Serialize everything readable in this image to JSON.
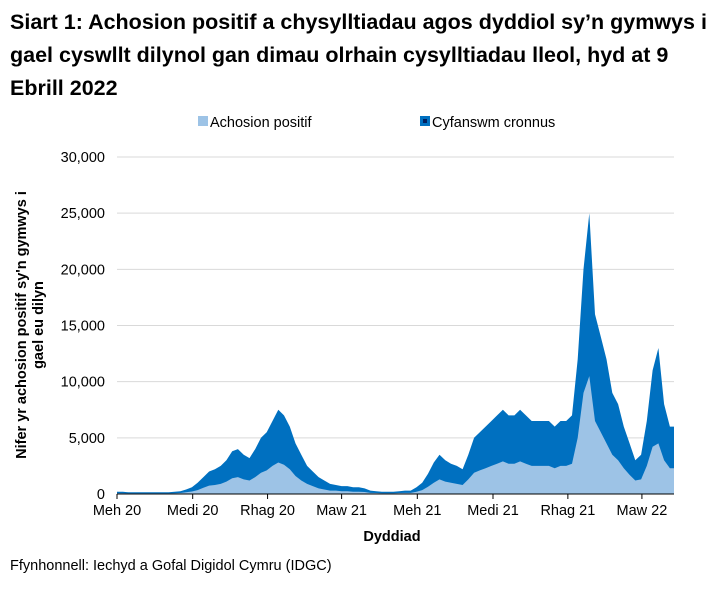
{
  "chart_data": {
    "type": "area",
    "title": "Siart 1: Achosion positif a chysylltiadau agos dyddiol sy’n gymwys i gael cyswllt dilynol gan dimau olrhain cysylltiadau lleol, hyd at 9 Ebrill 2022",
    "xlabel": "Dyddiad",
    "ylabel": "Nifer yr achosion positif sy'n gymwys i gael eu dilyn",
    "ylim": [
      0,
      30000
    ],
    "xlim": [
      "2020-06-01",
      "2022-04-09"
    ],
    "yticks": [
      0,
      5000,
      10000,
      15000,
      20000,
      25000,
      30000
    ],
    "ytick_labels": [
      "0",
      "5,000",
      "10,000",
      "15,000",
      "20,000",
      "25,000",
      "30,000"
    ],
    "xticks": [
      {
        "date": "2020-06-01",
        "label": "Meh 20"
      },
      {
        "date": "2020-09-01",
        "label": "Medi 20"
      },
      {
        "date": "2020-12-01",
        "label": "Rhag 20"
      },
      {
        "date": "2021-03-01",
        "label": "Maw 21"
      },
      {
        "date": "2021-06-01",
        "label": "Meh 21"
      },
      {
        "date": "2021-09-01",
        "label": "Medi 21"
      },
      {
        "date": "2021-12-01",
        "label": "Rhag 21"
      },
      {
        "date": "2022-03-01",
        "label": "Maw 22"
      }
    ],
    "grid": true,
    "legend": "top",
    "x": [
      "2020-06-01",
      "2020-06-08",
      "2020-06-15",
      "2020-06-22",
      "2020-06-29",
      "2020-07-06",
      "2020-07-13",
      "2020-07-20",
      "2020-07-27",
      "2020-08-03",
      "2020-08-10",
      "2020-08-17",
      "2020-08-24",
      "2020-08-31",
      "2020-09-07",
      "2020-09-14",
      "2020-09-21",
      "2020-09-28",
      "2020-10-05",
      "2020-10-12",
      "2020-10-19",
      "2020-10-26",
      "2020-11-02",
      "2020-11-09",
      "2020-11-16",
      "2020-11-23",
      "2020-11-30",
      "2020-12-07",
      "2020-12-14",
      "2020-12-21",
      "2020-12-28",
      "2021-01-04",
      "2021-01-11",
      "2021-01-18",
      "2021-01-25",
      "2021-02-01",
      "2021-02-08",
      "2021-02-15",
      "2021-02-22",
      "2021-03-01",
      "2021-03-08",
      "2021-03-15",
      "2021-03-22",
      "2021-03-29",
      "2021-04-05",
      "2021-04-12",
      "2021-04-19",
      "2021-04-26",
      "2021-05-03",
      "2021-05-10",
      "2021-05-17",
      "2021-05-24",
      "2021-05-31",
      "2021-06-07",
      "2021-06-14",
      "2021-06-21",
      "2021-06-28",
      "2021-07-05",
      "2021-07-12",
      "2021-07-19",
      "2021-07-26",
      "2021-08-02",
      "2021-08-09",
      "2021-08-16",
      "2021-08-23",
      "2021-08-30",
      "2021-09-06",
      "2021-09-13",
      "2021-09-20",
      "2021-09-27",
      "2021-10-04",
      "2021-10-11",
      "2021-10-18",
      "2021-10-25",
      "2021-11-01",
      "2021-11-08",
      "2021-11-15",
      "2021-11-22",
      "2021-11-29",
      "2021-12-06",
      "2021-12-13",
      "2021-12-20",
      "2021-12-27",
      "2022-01-03",
      "2022-01-10",
      "2022-01-17",
      "2022-01-24",
      "2022-01-31",
      "2022-02-07",
      "2022-02-14",
      "2022-02-21",
      "2022-02-28",
      "2022-03-07",
      "2022-03-14",
      "2022-03-21",
      "2022-03-28",
      "2022-04-04"
    ],
    "series": [
      {
        "name": "Cyfanswm cronnus",
        "color": "#0070c0",
        "values": [
          200,
          200,
          150,
          150,
          150,
          150,
          150,
          150,
          150,
          150,
          200,
          250,
          400,
          600,
          1000,
          1500,
          2000,
          2200,
          2500,
          3000,
          3800,
          4000,
          3500,
          3200,
          4000,
          5000,
          5500,
          6500,
          7500,
          7000,
          6000,
          4500,
          3500,
          2500,
          2000,
          1500,
          1200,
          900,
          800,
          700,
          700,
          600,
          600,
          500,
          300,
          250,
          200,
          200,
          200,
          250,
          300,
          300,
          600,
          1000,
          1800,
          2800,
          3500,
          3000,
          2700,
          2500,
          2200,
          3500,
          5000,
          5500,
          6000,
          6500,
          7000,
          7500,
          7000,
          7000,
          7500,
          7000,
          6500,
          6500,
          6500,
          6500,
          6000,
          6500,
          6500,
          7000,
          12000,
          20000,
          25000,
          16000,
          14000,
          12000,
          9000,
          8000,
          6000,
          4500,
          3000,
          3500,
          6500,
          11000,
          13000,
          8000,
          6000
        ]
      },
      {
        "name": "Achosion positif",
        "color": "#9dc3e6",
        "values": [
          60,
          60,
          50,
          50,
          50,
          50,
          50,
          50,
          50,
          50,
          70,
          90,
          150,
          220,
          350,
          550,
          750,
          800,
          900,
          1100,
          1400,
          1500,
          1300,
          1200,
          1500,
          1900,
          2100,
          2500,
          2800,
          2600,
          2200,
          1600,
          1200,
          900,
          700,
          500,
          400,
          300,
          300,
          250,
          250,
          200,
          200,
          180,
          100,
          90,
          70,
          70,
          70,
          90,
          100,
          100,
          200,
          350,
          650,
          1000,
          1300,
          1100,
          1000,
          900,
          800,
          1300,
          1900,
          2100,
          2300,
          2500,
          2700,
          2900,
          2700,
          2700,
          2900,
          2700,
          2500,
          2500,
          2500,
          2500,
          2300,
          2500,
          2500,
          2700,
          5000,
          9000,
          10500,
          6500,
          5500,
          4500,
          3500,
          3000,
          2300,
          1700,
          1200,
          1300,
          2500,
          4200,
          4500,
          3000,
          2300
        ]
      }
    ]
  },
  "source": "Ffynhonnell: Iechyd a Gofal Digidol Cymru (IDGC)"
}
